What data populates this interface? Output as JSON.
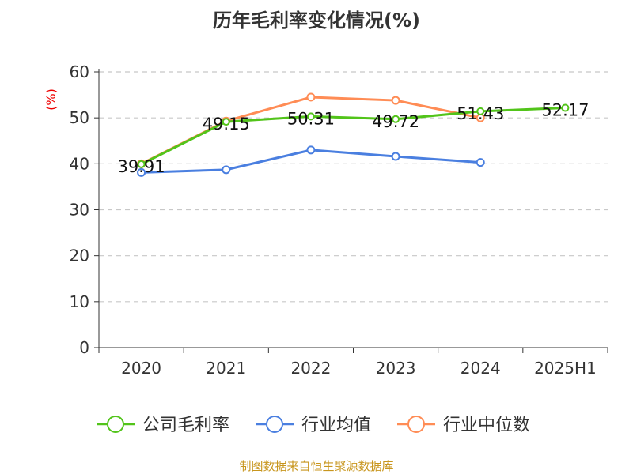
{
  "chart_data": {
    "type": "line",
    "title": "历年毛利率变化情况(%)",
    "ylabel": "(%)",
    "xlabel": "",
    "ylim": [
      0,
      60
    ],
    "yticks": [
      0,
      10,
      20,
      30,
      40,
      50,
      60
    ],
    "grid": true,
    "legend_position": "bottom",
    "categories": [
      "2020",
      "2021",
      "2022",
      "2023",
      "2024",
      "2025H1"
    ],
    "series": [
      {
        "name": "公司毛利率",
        "color": "#52c41a",
        "values": [
          39.91,
          49.15,
          50.31,
          49.72,
          51.43,
          52.17
        ],
        "labels": [
          "39.91",
          "49.15",
          "50.31",
          "49.72",
          "51.43",
          "52.17"
        ]
      },
      {
        "name": "行业均值",
        "color": "#4a7fe0",
        "values": [
          38.1,
          38.7,
          43.0,
          41.6,
          40.3,
          null
        ]
      },
      {
        "name": "行业中位数",
        "color": "#ff8c55",
        "values": [
          40.0,
          49.3,
          54.5,
          53.8,
          50.0,
          null
        ]
      }
    ]
  },
  "source": "制图数据来自恒生聚源数据库"
}
